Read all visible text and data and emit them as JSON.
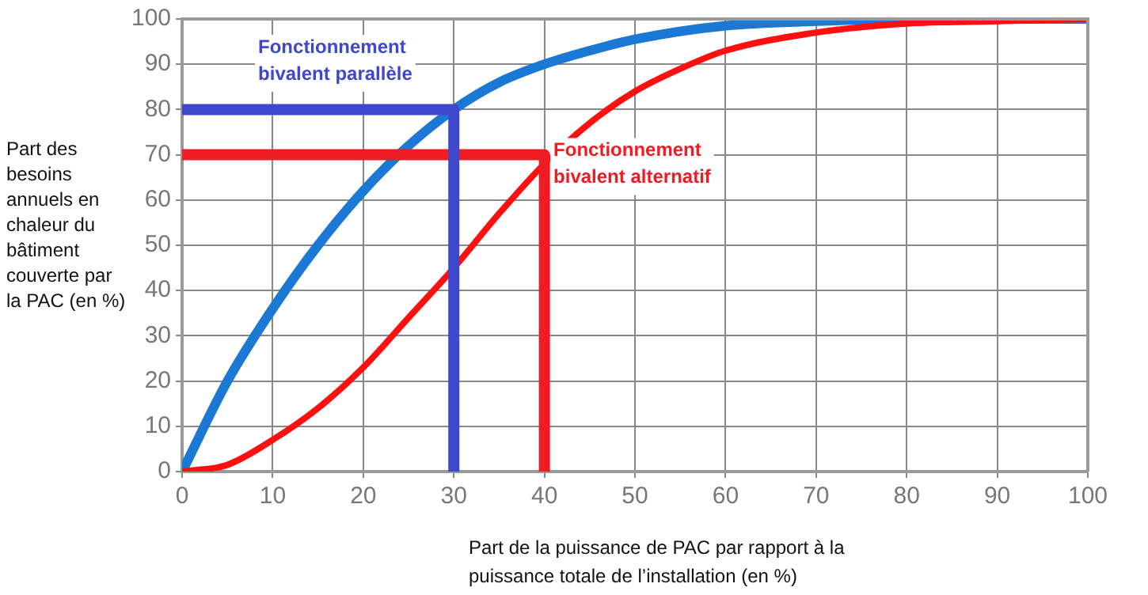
{
  "chart_data": {
    "type": "line",
    "xlabel": "Part de la puissance de PAC par rapport à la puissance totale de l’installation (en %)",
    "ylabel": "Part des besoins annuels en chaleur du bâtiment couverte par la PAC (en %)",
    "xlim": [
      0,
      100
    ],
    "ylim": [
      0,
      100
    ],
    "xticks": [
      0,
      10,
      20,
      30,
      40,
      50,
      60,
      70,
      80,
      90,
      100
    ],
    "yticks": [
      0,
      10,
      20,
      30,
      40,
      50,
      60,
      70,
      80,
      90,
      100
    ],
    "grid": true,
    "legend": false,
    "marker": "none",
    "line_style": "solid",
    "series": [
      {
        "color": "#1b78d4",
        "x": [
          0,
          5,
          10,
          15,
          20,
          25,
          30,
          35,
          40,
          45,
          50,
          60,
          70,
          80,
          90,
          100
        ],
        "values": [
          0,
          20,
          36,
          50,
          62,
          72,
          80,
          86,
          90,
          93,
          95.5,
          98.5,
          99.5,
          100,
          100,
          100
        ]
      },
      {
        "color": "#ff1010",
        "x": [
          0,
          5,
          10,
          15,
          20,
          25,
          30,
          35,
          40,
          45,
          50,
          55,
          60,
          70,
          80,
          90,
          100
        ],
        "values": [
          0,
          1.5,
          7,
          14,
          23,
          34,
          45,
          57,
          68,
          77,
          84,
          89,
          93,
          97,
          99,
          99.5,
          100
        ]
      },
      {
        "color": "#3f48cc",
        "x": [
          0,
          30,
          30
        ],
        "values": [
          80,
          80,
          0
        ]
      },
      {
        "color": "#ee1c25",
        "x": [
          0,
          40,
          40
        ],
        "values": [
          70,
          70,
          0
        ]
      }
    ],
    "annotations": [
      "Fonctionnement bivalent parallèle",
      {
        "text": "Fonctionnement bivalent alternatif",
        "x": 41,
        "y": 73
      }
    ]
  }
}
